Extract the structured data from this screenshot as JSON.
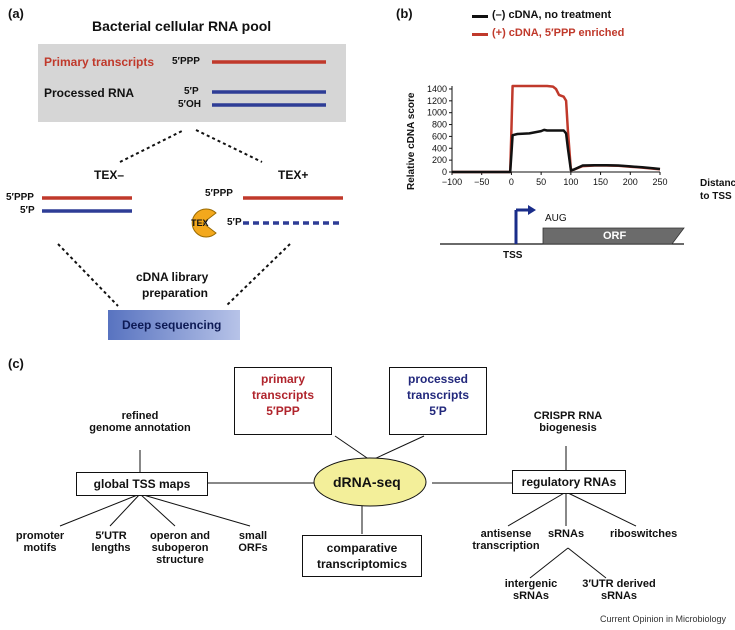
{
  "colors": {
    "primary_red": "#c0392b",
    "processed_blue": "#2e3d96",
    "tex_yellow": "#f3a81c",
    "pool_box": "#d6d6d6",
    "deepseq_box": "#7f95cf",
    "orf_box": "#6b6b6b",
    "dRNA_ellipse": "#f3ef9a",
    "primary_box_text": "#b0242c",
    "processed_box_text": "#22287c"
  },
  "panel_a": {
    "label": "(a)",
    "title": "Bacterial cellular RNA pool",
    "primary_transcripts": "Primary transcripts",
    "primary_end": "5′PPP",
    "processed_rna": "Processed RNA",
    "processed_end_p": "5′P",
    "processed_end_oh": "5′OH",
    "tex_minus": "TEX–",
    "tex_plus": "TEX+",
    "left_ppp": "5′PPP",
    "left_p": "5′P",
    "right_ppp": "5′PPP",
    "right_p": "5′P",
    "tex_badge": "TEX",
    "cdna_line1": "cDNA library",
    "cdna_line2": "preparation",
    "deep_seq": "Deep sequencing"
  },
  "panel_b": {
    "label": "(b)",
    "legend": [
      {
        "name": "(–) cDNA, no treatment",
        "color": "#111111"
      },
      {
        "name": "(+) cDNA, 5′PPP enriched",
        "color": "#c0392b"
      }
    ],
    "ylabel_1": "Relative cDNA score",
    "xlabel_1": "Distance",
    "xlabel_2": "to TSS",
    "aug": "AUG",
    "orf": "ORF",
    "tss": "TSS"
  },
  "chart_data": {
    "type": "line",
    "title": "",
    "xlabel": "Distance to TSS",
    "ylabel": "Relative cDNA score",
    "xlim": [
      -100,
      250
    ],
    "ylim": [
      0,
      1450
    ],
    "x_ticks": [
      -100,
      -50,
      0,
      50,
      100,
      150,
      200,
      250
    ],
    "y_ticks": [
      0,
      200,
      400,
      600,
      800,
      1000,
      1200,
      1400
    ],
    "series": [
      {
        "name": "(–) cDNA, no treatment",
        "color": "#111111",
        "x": [
          -100,
          -10,
          -2,
          0,
          2,
          10,
          30,
          50,
          55,
          60,
          70,
          80,
          88,
          92,
          95,
          100,
          105,
          120,
          140,
          160,
          180,
          200,
          220,
          240,
          250
        ],
        "y": [
          0,
          0,
          0,
          300,
          620,
          640,
          650,
          690,
          710,
          700,
          700,
          700,
          700,
          650,
          400,
          30,
          40,
          110,
          115,
          115,
          110,
          95,
          80,
          60,
          50
        ]
      },
      {
        "name": "(+) cDNA, 5′PPP enriched",
        "color": "#c0392b",
        "x": [
          -100,
          -10,
          -2,
          0,
          2,
          10,
          30,
          50,
          60,
          70,
          75,
          80,
          88,
          92,
          95,
          100,
          105,
          120,
          140,
          160,
          180,
          200,
          220,
          240,
          250
        ],
        "y": [
          0,
          0,
          0,
          700,
          1450,
          1450,
          1450,
          1450,
          1450,
          1440,
          1400,
          1300,
          1270,
          1200,
          700,
          30,
          40,
          100,
          110,
          110,
          105,
          90,
          75,
          55,
          45
        ]
      }
    ]
  },
  "panel_c": {
    "label": "(c)",
    "primary_box": [
      "primary",
      "transcripts",
      "5′PPP"
    ],
    "processed_box": [
      "processed",
      "transcripts",
      "5′P"
    ],
    "center": "dRNA-seq",
    "refined": [
      "refined",
      "genome annotation"
    ],
    "global_tss": "global TSS maps",
    "crispr": [
      "CRISPR RNA",
      "biogenesis"
    ],
    "regulatory": "regulatory RNAs",
    "promoter": [
      "promoter",
      "motifs"
    ],
    "utr5": [
      "5′UTR",
      "lengths"
    ],
    "operon": [
      "operon and",
      "suboperon",
      "structure"
    ],
    "small_orfs": [
      "small",
      "ORFs"
    ],
    "comparative": [
      "comparative",
      "transcriptomics"
    ],
    "antisense": [
      "antisense",
      "transcription"
    ],
    "srnas": "sRNAs",
    "riboswitches": "riboswitches",
    "intergenic": [
      "intergenic",
      "sRNAs"
    ],
    "utr3": [
      "3′UTR derived",
      "sRNAs"
    ]
  },
  "footer": "Current Opinion in Microbiology"
}
